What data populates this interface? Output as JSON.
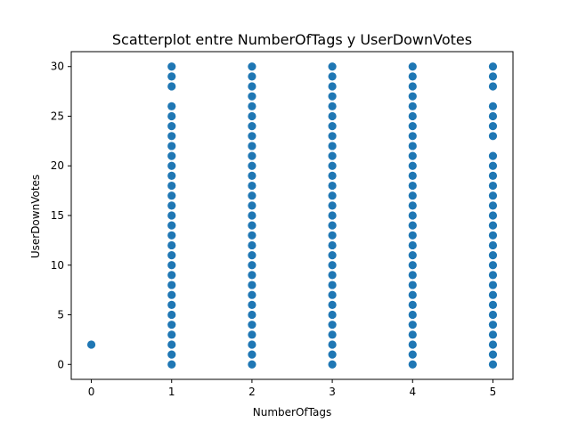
{
  "chart_data": {
    "type": "scatter",
    "title": "Scatterplot entre NumberOfTags y UserDownVotes",
    "xlabel": "NumberOfTags",
    "ylabel": "UserDownVotes",
    "xlim": [
      -0.25,
      5.25
    ],
    "ylim": [
      -1.5,
      31.5
    ],
    "xticks": [
      0,
      1,
      2,
      3,
      4,
      5
    ],
    "yticks": [
      0,
      5,
      10,
      15,
      20,
      25,
      30
    ],
    "grid": false,
    "marker_color": "#1f77b4",
    "series": [
      {
        "points": [
          {
            "x": 0,
            "y": [
              2
            ]
          },
          {
            "x": 1,
            "y": [
              0,
              1,
              2,
              3,
              4,
              5,
              6,
              7,
              8,
              9,
              10,
              11,
              12,
              13,
              14,
              15,
              16,
              17,
              18,
              19,
              20,
              21,
              22,
              23,
              24,
              25,
              26,
              28,
              29,
              30
            ]
          },
          {
            "x": 2,
            "y": [
              0,
              1,
              2,
              3,
              4,
              5,
              6,
              7,
              8,
              9,
              10,
              11,
              12,
              13,
              14,
              15,
              16,
              17,
              18,
              19,
              20,
              21,
              22,
              23,
              24,
              25,
              26,
              27,
              28,
              29,
              30
            ]
          },
          {
            "x": 3,
            "y": [
              0,
              1,
              2,
              3,
              4,
              5,
              6,
              7,
              8,
              9,
              10,
              11,
              12,
              13,
              14,
              15,
              16,
              17,
              18,
              19,
              20,
              21,
              22,
              23,
              24,
              25,
              26,
              27,
              28,
              29,
              30
            ]
          },
          {
            "x": 4,
            "y": [
              0,
              1,
              2,
              3,
              4,
              5,
              6,
              7,
              8,
              9,
              10,
              11,
              12,
              13,
              14,
              15,
              16,
              17,
              18,
              19,
              20,
              21,
              22,
              23,
              24,
              25,
              26,
              27,
              28,
              29,
              30
            ]
          },
          {
            "x": 5,
            "y": [
              0,
              1,
              2,
              3,
              4,
              5,
              6,
              7,
              8,
              9,
              10,
              11,
              12,
              13,
              14,
              15,
              16,
              17,
              18,
              19,
              20,
              21,
              23,
              24,
              25,
              26,
              28,
              29,
              30
            ]
          }
        ]
      }
    ]
  }
}
